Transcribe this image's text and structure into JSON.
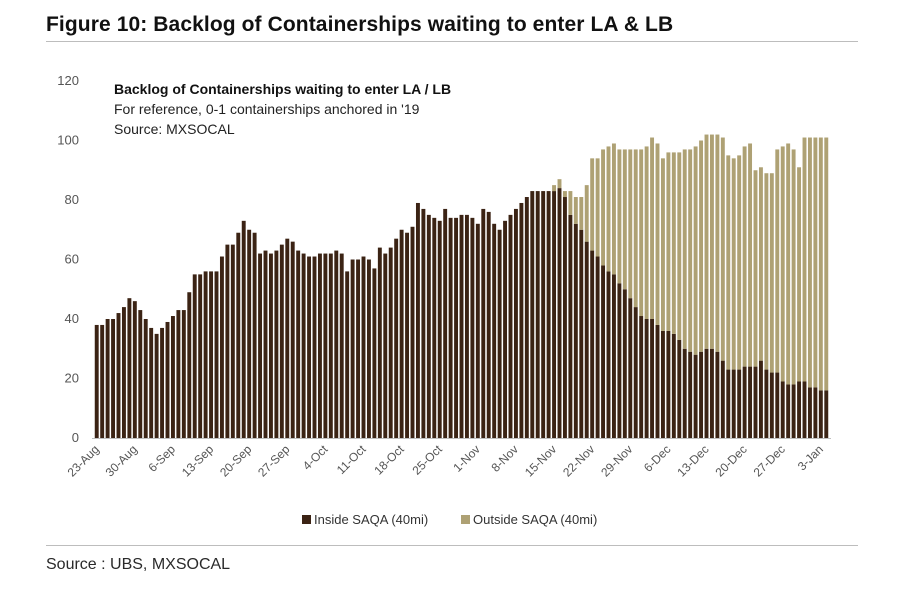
{
  "figure_title": "Figure 10: Backlog of Containerships waiting to enter LA & LB",
  "source_footer": "Source : UBS, MXSOCAL",
  "colors": {
    "inside": "#3b2314",
    "outside": "#aea174",
    "axis": "#bfbfbf"
  },
  "chart_data": {
    "type": "bar",
    "stacked": true,
    "title": "Backlog of Containerships waiting to enter LA / LB",
    "subtitle": "For reference, 0-1 containerships anchored in '19",
    "source": "Source: MXSOCAL",
    "ylim": [
      0,
      120
    ],
    "yticks": [
      "0",
      "20",
      "40",
      "60",
      "80",
      "100",
      "120"
    ],
    "xtick_labels": [
      "23-Aug",
      "30-Aug",
      "6-Sep",
      "13-Sep",
      "20-Sep",
      "27-Sep",
      "4-Oct",
      "11-Oct",
      "18-Oct",
      "25-Oct",
      "1-Nov",
      "8-Nov",
      "15-Nov",
      "22-Nov",
      "29-Nov",
      "6-Dec",
      "13-Dec",
      "20-Dec",
      "27-Dec",
      "3-Jan"
    ],
    "xtick_every": 7,
    "legend": [
      "Inside SAQA (40mi)",
      "Outside SAQA (40mi)"
    ],
    "series": [
      {
        "name": "Inside SAQA (40mi)",
        "values": [
          38,
          38,
          40,
          40,
          42,
          44,
          47,
          46,
          43,
          40,
          37,
          35,
          37,
          39,
          41,
          43,
          43,
          49,
          55,
          55,
          56,
          56,
          56,
          61,
          65,
          65,
          69,
          73,
          70,
          69,
          62,
          63,
          62,
          63,
          65,
          67,
          66,
          63,
          62,
          61,
          61,
          62,
          62,
          62,
          63,
          62,
          56,
          60,
          60,
          61,
          60,
          57,
          64,
          62,
          64,
          67,
          70,
          69,
          71,
          79,
          77,
          75,
          74,
          73,
          77,
          74,
          74,
          75,
          75,
          74,
          72,
          77,
          76,
          72,
          70,
          73,
          75,
          77,
          79,
          81,
          83,
          83,
          83,
          83,
          83,
          84,
          81,
          75,
          72,
          70,
          66,
          63,
          61,
          58,
          56,
          55,
          52,
          50,
          47,
          44,
          41,
          40,
          40,
          38,
          36,
          36,
          35,
          33,
          30,
          29,
          28,
          29,
          30,
          30,
          29,
          26,
          23,
          23,
          23,
          24,
          24,
          24,
          26,
          23,
          22,
          22,
          19,
          18,
          18,
          19,
          19,
          17,
          17,
          16,
          16
        ]
      },
      {
        "name": "Outside SAQA (40mi)",
        "values": [
          0,
          0,
          0,
          0,
          0,
          0,
          0,
          0,
          0,
          0,
          0,
          0,
          0,
          0,
          0,
          0,
          0,
          0,
          0,
          0,
          0,
          0,
          0,
          0,
          0,
          0,
          0,
          0,
          0,
          0,
          0,
          0,
          0,
          0,
          0,
          0,
          0,
          0,
          0,
          0,
          0,
          0,
          0,
          0,
          0,
          0,
          0,
          0,
          0,
          0,
          0,
          0,
          0,
          0,
          0,
          0,
          0,
          0,
          0,
          0,
          0,
          0,
          0,
          0,
          0,
          0,
          0,
          0,
          0,
          0,
          0,
          0,
          0,
          0,
          0,
          0,
          0,
          0,
          0,
          0,
          0,
          0,
          0,
          0,
          2,
          3,
          2,
          8,
          9,
          11,
          19,
          31,
          33,
          39,
          42,
          44,
          45,
          47,
          50,
          53,
          56,
          58,
          61,
          61,
          58,
          60,
          61,
          63,
          67,
          68,
          70,
          71,
          72,
          72,
          73,
          75,
          72,
          71,
          72,
          74,
          75,
          66,
          65,
          66,
          67,
          75,
          79,
          81,
          79,
          72,
          82,
          84,
          84,
          85,
          85
        ]
      }
    ]
  }
}
